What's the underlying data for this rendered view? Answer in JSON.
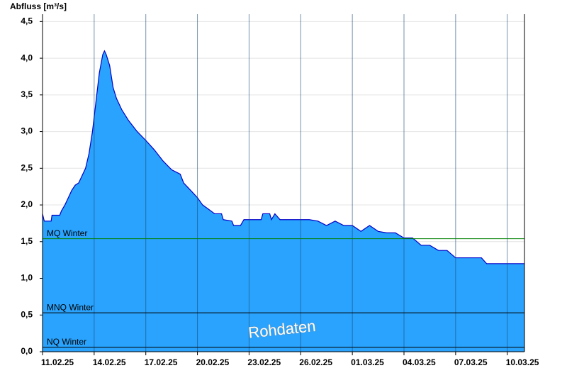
{
  "chart_data": {
    "type": "area",
    "y_label": "Abfluss [m³/s]",
    "watermark": "Rohdaten",
    "color": "#29a3fd",
    "line_color": "#0000c8",
    "x": [
      0,
      0.1,
      0.5,
      0.55,
      1.0,
      1.1,
      1.3,
      1.5,
      1.7,
      1.9,
      2.1,
      2.3,
      2.5,
      2.7,
      2.9,
      3.1,
      3.3,
      3.5,
      3.6,
      3.7,
      3.9,
      4.1,
      4.3,
      4.6,
      5.0,
      5.5,
      6.0,
      6.5,
      7.0,
      7.5,
      8.0,
      8.2,
      8.6,
      9.0,
      9.3,
      9.6,
      10.0,
      10.4,
      10.5,
      11.0,
      11.1,
      11.5,
      11.7,
      12.0,
      12.7,
      12.8,
      13.2,
      13.3,
      13.5,
      13.8,
      14.5,
      15.0,
      15.5,
      16.0,
      16.5,
      17.0,
      17.5,
      18.0,
      18.5,
      19.0,
      19.5,
      20.0,
      20.5,
      21.0,
      21.5,
      22.0,
      22.5,
      23.0,
      23.5,
      24.0,
      24.5,
      25.0,
      25.5,
      25.8,
      26.5,
      27.0,
      28.0
    ],
    "values": [
      1.88,
      1.78,
      1.78,
      1.86,
      1.86,
      1.92,
      2.0,
      2.1,
      2.2,
      2.27,
      2.3,
      2.4,
      2.5,
      2.7,
      3.0,
      3.4,
      3.8,
      4.05,
      4.1,
      4.05,
      3.9,
      3.6,
      3.45,
      3.3,
      3.15,
      3.0,
      2.88,
      2.75,
      2.6,
      2.48,
      2.42,
      2.3,
      2.2,
      2.1,
      2.0,
      1.95,
      1.88,
      1.88,
      1.8,
      1.78,
      1.72,
      1.72,
      1.8,
      1.8,
      1.8,
      1.88,
      1.88,
      1.8,
      1.88,
      1.8,
      1.8,
      1.8,
      1.8,
      1.78,
      1.72,
      1.78,
      1.72,
      1.72,
      1.64,
      1.72,
      1.64,
      1.62,
      1.62,
      1.55,
      1.55,
      1.45,
      1.45,
      1.38,
      1.38,
      1.28,
      1.28,
      1.28,
      1.28,
      1.2,
      1.2,
      1.2,
      1.2
    ],
    "reference_lines": [
      {
        "name": "MQ Winter",
        "value": 1.54,
        "color": "#008000"
      },
      {
        "name": "MNQ Winter",
        "value": 0.53,
        "color": "#000000"
      },
      {
        "name": "NQ Winter",
        "value": 0.06,
        "color": "#000000"
      }
    ],
    "xlim": [
      0,
      28
    ],
    "xticks": [
      {
        "value": 0,
        "label": "11.02.25"
      },
      {
        "value": 3,
        "label": "14.02.25"
      },
      {
        "value": 6,
        "label": "17.02.25"
      },
      {
        "value": 9,
        "label": "20.02.25"
      },
      {
        "value": 12,
        "label": "23.02.25"
      },
      {
        "value": 15,
        "label": "26.02.25"
      },
      {
        "value": 18,
        "label": "01.03.25"
      },
      {
        "value": 21,
        "label": "04.03.25"
      },
      {
        "value": 24,
        "label": "07.03.25"
      },
      {
        "value": 27,
        "label": "10.03.25"
      }
    ],
    "ylim": [
      0,
      4.6
    ],
    "yticks": [
      {
        "value": 0,
        "label": "0,0"
      },
      {
        "value": 0.5,
        "label": "0,5"
      },
      {
        "value": 1,
        "label": "1,0"
      },
      {
        "value": 1.5,
        "label": "1,5"
      },
      {
        "value": 2,
        "label": "2,0"
      },
      {
        "value": 2.5,
        "label": "2,5"
      },
      {
        "value": 3,
        "label": "3,0"
      },
      {
        "value": 3.5,
        "label": "3,5"
      },
      {
        "value": 4,
        "label": "4,0"
      },
      {
        "value": 4.5,
        "label": "4,5"
      }
    ],
    "grid": true
  }
}
